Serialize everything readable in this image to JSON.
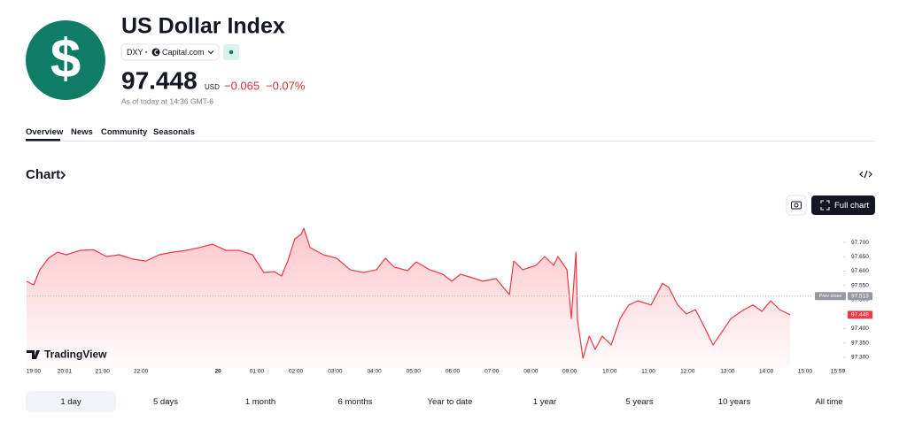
{
  "header": {
    "icon": "$",
    "title": "US Dollar Index",
    "ticker": "DXY",
    "source": "Capital.com",
    "price": "97.448",
    "currency": "USD",
    "change": "−0.065",
    "change_percent": "−0.07%",
    "as_of": "As of today at 14:36 GMT-6"
  },
  "tabs": [
    "Overview",
    "News",
    "Community",
    "Seasonals"
  ],
  "section_title": "Chart",
  "full_chart_button": "Full chart",
  "watermark": "TradingView",
  "ranges": [
    "1 day",
    "5 days",
    "1 month",
    "6 months",
    "Year to date",
    "1 year",
    "5 years",
    "10 years",
    "All time"
  ],
  "chart_data": {
    "type": "line",
    "color": "#f23645",
    "x": [
      -0.18,
      0,
      0.16,
      0.38,
      0.61,
      0.84,
      1.18,
      1.52,
      1.86,
      2.19,
      2.53,
      2.87,
      3.21,
      3.55,
      3.89,
      4.23,
      4.57,
      4.91,
      5.25,
      5.59,
      5.88,
      6.15,
      6.33,
      6.49,
      6.67,
      6.83,
      6.9,
      7.06,
      7.4,
      7.74,
      8.08,
      8.42,
      8.76,
      8.98,
      9.21,
      9.55,
      9.77,
      10.11,
      10.45,
      10.68,
      10.9,
      11.13,
      11.47,
      11.81,
      12.15,
      12.26,
      12.49,
      12.83,
      13.05,
      13.28,
      13.39,
      13.62,
      13.73,
      13.85,
      13.89,
      14.03,
      14.19,
      14.34,
      14.52,
      14.75,
      14.98,
      15.2,
      15.43,
      15.77,
      16.06,
      16.22,
      16.45,
      16.67,
      16.9,
      17.13,
      17.35,
      17.58,
      17.81,
      18.14,
      18.37,
      18.6,
      18.82,
      19.05,
      19.32
    ],
    "values": [
      97.565,
      97.552,
      97.605,
      97.645,
      97.666,
      97.657,
      97.672,
      97.675,
      97.651,
      97.657,
      97.642,
      97.635,
      97.657,
      97.666,
      97.672,
      97.682,
      97.694,
      97.672,
      97.672,
      97.657,
      97.595,
      97.598,
      97.583,
      97.635,
      97.712,
      97.728,
      97.749,
      97.682,
      97.657,
      97.645,
      97.605,
      97.595,
      97.605,
      97.645,
      97.614,
      97.602,
      97.632,
      97.605,
      97.589,
      97.565,
      97.589,
      97.58,
      97.565,
      97.574,
      97.518,
      97.635,
      97.605,
      97.62,
      97.651,
      97.62,
      97.651,
      97.605,
      97.435,
      97.666,
      97.429,
      97.297,
      97.374,
      97.328,
      97.374,
      97.343,
      97.435,
      97.482,
      97.497,
      97.482,
      97.558,
      97.543,
      97.482,
      97.451,
      97.466,
      97.405,
      97.343,
      97.389,
      97.435,
      97.466,
      97.482,
      97.46,
      97.497,
      97.466,
      97.448
    ],
    "xlim": [
      -0.18,
      20.63
    ],
    "xticks": [
      {
        "value": 0,
        "label": "19:00"
      },
      {
        "value": 0.79,
        "label": "20:01"
      },
      {
        "value": 1.76,
        "label": "21:00"
      },
      {
        "value": 2.74,
        "label": "22:00"
      },
      {
        "value": 4.71,
        "label": "20"
      },
      {
        "value": 5.7,
        "label": "01:00"
      },
      {
        "value": 6.7,
        "label": "02:00"
      },
      {
        "value": 7.7,
        "label": "03:00"
      },
      {
        "value": 8.7,
        "label": "04:00"
      },
      {
        "value": 9.7,
        "label": "05:00"
      },
      {
        "value": 10.7,
        "label": "06:00"
      },
      {
        "value": 11.7,
        "label": "07:00"
      },
      {
        "value": 12.7,
        "label": "08:00"
      },
      {
        "value": 13.69,
        "label": "09:00"
      },
      {
        "value": 14.71,
        "label": "10:00"
      },
      {
        "value": 15.7,
        "label": "11:00"
      },
      {
        "value": 16.7,
        "label": "12:00"
      },
      {
        "value": 17.72,
        "label": "13:00"
      },
      {
        "value": 18.71,
        "label": "14:00"
      },
      {
        "value": 19.7,
        "label": "15:00"
      },
      {
        "value": 20.54,
        "label": "15:59"
      }
    ],
    "ylim": [
      97.266,
      97.774
    ],
    "yticks": [
      {
        "value": 97.3,
        "label": "97.300"
      },
      {
        "value": 97.35,
        "label": "97.350"
      },
      {
        "value": 97.4,
        "label": "97.400"
      },
      {
        "value": 97.45,
        "label": "97.450"
      },
      {
        "value": 97.5,
        "label": "97.500"
      },
      {
        "value": 97.55,
        "label": "97.550"
      },
      {
        "value": 97.6,
        "label": "97.600"
      },
      {
        "value": 97.65,
        "label": "97.650"
      },
      {
        "value": 97.7,
        "label": "97.700"
      }
    ],
    "prev_close_label": "Prev close",
    "prev_close": 97.513
  }
}
